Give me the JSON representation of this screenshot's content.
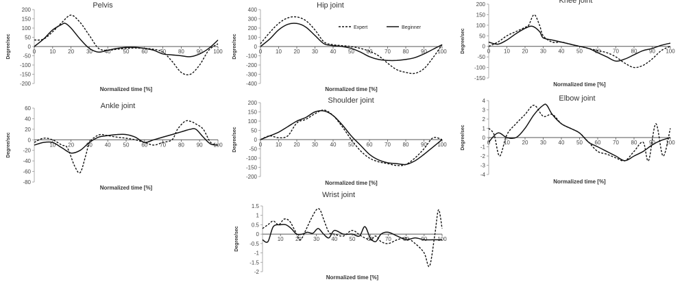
{
  "chart_data": [
    {
      "type": "line",
      "title": "Pelvis",
      "xlabel": "Normalized time [%]",
      "ylabel": "Degree/sec",
      "xlim": [
        0,
        100
      ],
      "ylim": [
        -200,
        200
      ],
      "xticks": [
        "0",
        "10",
        "20",
        "30",
        "40",
        "50",
        "60",
        "70",
        "80",
        "90",
        "100"
      ],
      "yticks": [
        "200",
        "150",
        "100",
        "50",
        "0",
        "-50",
        "-100",
        "-150",
        "-200"
      ],
      "series": [
        {
          "name": "Expert",
          "style": "dashed",
          "x": [
            0,
            5,
            10,
            15,
            20,
            25,
            30,
            35,
            40,
            45,
            50,
            55,
            60,
            65,
            70,
            75,
            80,
            85,
            90,
            95,
            100
          ],
          "y": [
            35,
            40,
            80,
            130,
            170,
            130,
            60,
            -10,
            -20,
            -15,
            -10,
            -8,
            -10,
            -15,
            -30,
            -80,
            -140,
            -150,
            -100,
            -20,
            15
          ]
        },
        {
          "name": "Beginner",
          "style": "solid",
          "x": [
            0,
            5,
            10,
            15,
            17,
            20,
            25,
            30,
            35,
            40,
            45,
            50,
            55,
            60,
            65,
            70,
            75,
            80,
            85,
            90,
            95,
            100
          ],
          "y": [
            0,
            40,
            90,
            120,
            125,
            100,
            40,
            -10,
            -30,
            -20,
            -10,
            -5,
            -5,
            -10,
            -20,
            -40,
            -45,
            -50,
            -55,
            -40,
            -10,
            35
          ]
        }
      ]
    },
    {
      "type": "line",
      "title": "Hip joint",
      "xlabel": "Normalized time [%]",
      "ylabel": "Degree/sec",
      "xlim": [
        0,
        100
      ],
      "ylim": [
        -400,
        400
      ],
      "xticks": [
        "0",
        "10",
        "20",
        "30",
        "40",
        "50",
        "60",
        "70",
        "80",
        "90",
        "100"
      ],
      "yticks": [
        "400",
        "300",
        "200",
        "100",
        "0",
        "-100",
        "-200",
        "-300",
        "-400"
      ],
      "legend": {
        "position": "top-right",
        "entries": [
          "Expert",
          "Beginner"
        ]
      },
      "series": [
        {
          "name": "Expert",
          "style": "dashed",
          "x": [
            0,
            5,
            10,
            15,
            20,
            25,
            30,
            35,
            40,
            45,
            50,
            55,
            60,
            65,
            70,
            75,
            80,
            85,
            90,
            95,
            100
          ],
          "y": [
            30,
            150,
            250,
            310,
            320,
            280,
            180,
            50,
            20,
            10,
            0,
            -20,
            -50,
            -100,
            -180,
            -250,
            -280,
            -290,
            -240,
            -120,
            20
          ]
        },
        {
          "name": "Beginner",
          "style": "solid",
          "x": [
            0,
            5,
            10,
            15,
            20,
            25,
            30,
            35,
            40,
            45,
            50,
            55,
            60,
            65,
            70,
            75,
            80,
            85,
            90,
            95,
            100
          ],
          "y": [
            0,
            80,
            180,
            240,
            250,
            210,
            120,
            30,
            10,
            0,
            -20,
            -60,
            -110,
            -140,
            -150,
            -150,
            -140,
            -120,
            -80,
            -30,
            20
          ]
        }
      ]
    },
    {
      "type": "line",
      "title": "Knee joint",
      "xlabel": "Normalized time [%]",
      "ylabel": "Degree/sec",
      "xlim": [
        0,
        100
      ],
      "ylim": [
        -150,
        200
      ],
      "xticks": [
        "0",
        "10",
        "20",
        "30",
        "40",
        "50",
        "60",
        "70",
        "80",
        "90",
        "100"
      ],
      "yticks": [
        "200",
        "150",
        "100",
        "50",
        "0",
        "-50",
        "-100",
        "-150"
      ],
      "series": [
        {
          "name": "Expert",
          "style": "dashed",
          "x": [
            0,
            5,
            10,
            15,
            20,
            22,
            25,
            28,
            30,
            35,
            40,
            45,
            50,
            55,
            60,
            65,
            70,
            75,
            80,
            85,
            90,
            95,
            100
          ],
          "y": [
            0,
            20,
            50,
            70,
            90,
            100,
            150,
            100,
            50,
            20,
            20,
            10,
            0,
            -10,
            -20,
            -30,
            -50,
            -80,
            -100,
            -90,
            -60,
            -20,
            0
          ]
        },
        {
          "name": "Beginner",
          "style": "solid",
          "x": [
            0,
            5,
            10,
            15,
            20,
            24,
            28,
            30,
            35,
            40,
            45,
            50,
            55,
            60,
            65,
            70,
            75,
            80,
            85,
            90,
            95,
            100
          ],
          "y": [
            20,
            10,
            30,
            60,
            85,
            95,
            70,
            40,
            30,
            20,
            10,
            0,
            -10,
            -30,
            -50,
            -70,
            -60,
            -40,
            -20,
            -10,
            5,
            15
          ]
        }
      ]
    },
    {
      "type": "line",
      "title": "Ankle joint",
      "xlabel": "Normalized time [%]",
      "ylabel": "Degree/sec",
      "xlim": [
        0,
        100
      ],
      "ylim": [
        -80,
        60
      ],
      "xticks": [
        "10",
        "20",
        "30",
        "40",
        "50",
        "60",
        "70",
        "80",
        "90",
        "100"
      ],
      "yticks": [
        "60",
        "40",
        "20",
        "0",
        "-20",
        "-40",
        "-60",
        "-80"
      ],
      "series": [
        {
          "name": "Expert",
          "style": "dashed",
          "x": [
            0,
            5,
            10,
            15,
            18,
            22,
            25,
            28,
            30,
            33,
            36,
            40,
            45,
            50,
            55,
            60,
            65,
            70,
            75,
            78,
            82,
            85,
            88,
            92,
            96,
            100
          ],
          "y": [
            -5,
            3,
            0,
            -10,
            -15,
            -50,
            -62,
            -30,
            -5,
            5,
            10,
            8,
            5,
            3,
            0,
            -5,
            -10,
            -5,
            0,
            20,
            35,
            35,
            30,
            20,
            -5,
            -10
          ]
        },
        {
          "name": "Beginner",
          "style": "solid",
          "x": [
            0,
            5,
            10,
            15,
            20,
            25,
            30,
            35,
            40,
            45,
            50,
            55,
            60,
            65,
            70,
            75,
            80,
            85,
            88,
            92,
            96,
            100
          ],
          "y": [
            -10,
            -5,
            -5,
            -15,
            -25,
            -20,
            -5,
            5,
            8,
            10,
            10,
            5,
            -5,
            0,
            5,
            10,
            15,
            20,
            20,
            5,
            -8,
            -10
          ]
        }
      ]
    },
    {
      "type": "line",
      "title": "Shoulder joint",
      "xlabel": "Normalized time [%]",
      "ylabel": "Degree/sec",
      "xlim": [
        0,
        100
      ],
      "ylim": [
        -200,
        200
      ],
      "xticks": [
        "0",
        "10",
        "20",
        "30",
        "40",
        "50",
        "60",
        "70",
        "80",
        "90",
        "100"
      ],
      "yticks": [
        "200",
        "150",
        "100",
        "50",
        "0",
        "-50",
        "-100",
        "-150",
        "-200"
      ],
      "series": [
        {
          "name": "Expert",
          "style": "dashed",
          "x": [
            0,
            5,
            10,
            15,
            20,
            25,
            30,
            35,
            40,
            45,
            50,
            55,
            60,
            65,
            70,
            75,
            80,
            85,
            90,
            95,
            100
          ],
          "y": [
            0,
            20,
            10,
            20,
            90,
            110,
            140,
            160,
            130,
            70,
            0,
            -60,
            -100,
            -120,
            -130,
            -140,
            -135,
            -100,
            -50,
            10,
            0
          ]
        },
        {
          "name": "Beginner",
          "style": "solid",
          "x": [
            0,
            5,
            10,
            15,
            20,
            25,
            30,
            35,
            40,
            45,
            50,
            55,
            60,
            65,
            70,
            75,
            80,
            85,
            90,
            95,
            100
          ],
          "y": [
            0,
            20,
            40,
            70,
            100,
            120,
            150,
            155,
            130,
            80,
            20,
            -30,
            -80,
            -110,
            -125,
            -130,
            -135,
            -115,
            -80,
            -40,
            0
          ]
        }
      ]
    },
    {
      "type": "line",
      "title": "Elbow joint",
      "xlabel": "Normalized time [%]",
      "ylabel": "Degree/sec",
      "xlim": [
        0,
        100
      ],
      "ylim": [
        -4,
        4
      ],
      "xticks": [
        "0",
        "10",
        "20",
        "30",
        "40",
        "50",
        "60",
        "70",
        "80",
        "90",
        "100"
      ],
      "yticks": [
        "4",
        "3",
        "2",
        "1",
        "0",
        "-1",
        "-2",
        "-3",
        "-4"
      ],
      "series": [
        {
          "name": "Expert",
          "style": "dashed",
          "x": [
            0,
            3,
            6,
            10,
            15,
            20,
            25,
            30,
            35,
            40,
            45,
            50,
            55,
            60,
            65,
            70,
            75,
            80,
            85,
            88,
            92,
            96,
            100
          ],
          "y": [
            1,
            0.3,
            -2,
            0.3,
            1.5,
            2.5,
            3.5,
            2.3,
            2.5,
            1.5,
            1,
            0.5,
            -0.5,
            -1.5,
            -1.8,
            -2.2,
            -2.5,
            -1.5,
            -0.5,
            -2.5,
            1.5,
            -2,
            1
          ]
        },
        {
          "name": "Beginner",
          "style": "solid",
          "x": [
            0,
            5,
            10,
            15,
            20,
            25,
            30,
            32,
            35,
            40,
            45,
            50,
            55,
            60,
            65,
            70,
            75,
            80,
            85,
            90,
            95,
            100
          ],
          "y": [
            -0.5,
            0.5,
            0,
            0,
            1,
            2.5,
            3.5,
            3.5,
            2.5,
            1.5,
            1,
            0.5,
            -0.5,
            -1,
            -1.5,
            -2,
            -2.5,
            -2,
            -1.5,
            -0.8,
            -0.3,
            0
          ]
        }
      ]
    },
    {
      "type": "line",
      "title": "Wrist joint",
      "xlabel": "Normalized time [%]",
      "ylabel": "Degree/sec",
      "xlim": [
        0,
        100
      ],
      "ylim": [
        -2,
        1.5
      ],
      "xticks": [
        "10",
        "20",
        "30",
        "40",
        "50",
        "60",
        "70",
        "80",
        "90",
        "100"
      ],
      "yticks": [
        "1.5",
        "1",
        "0.5",
        "0",
        "-0.5",
        "-1",
        "-1.5",
        "-2"
      ],
      "series": [
        {
          "name": "Expert",
          "style": "dashed",
          "x": [
            0,
            3,
            6,
            9,
            12,
            15,
            18,
            21,
            24,
            27,
            30,
            32,
            34,
            37,
            40,
            45,
            50,
            55,
            60,
            63,
            66,
            70,
            75,
            80,
            85,
            90,
            93,
            96,
            98,
            100
          ],
          "y": [
            0.3,
            0.5,
            0.7,
            0.5,
            0.8,
            0.7,
            0.2,
            -0.3,
            0.2,
            0.8,
            1.3,
            1.3,
            0.8,
            0.1,
            0,
            -0.1,
            0.2,
            -0.1,
            -0.3,
            -0.1,
            -0.4,
            -0.5,
            -0.3,
            -0.2,
            -0.5,
            -1.0,
            -1.7,
            0,
            1.3,
            0.3
          ]
        },
        {
          "name": "Beginner",
          "style": "solid",
          "x": [
            0,
            3,
            6,
            10,
            13,
            16,
            19,
            22,
            25,
            28,
            31,
            34,
            37,
            40,
            45,
            50,
            54,
            57,
            60,
            63,
            66,
            70,
            75,
            80,
            85,
            90,
            95,
            100
          ],
          "y": [
            -0.3,
            -0.4,
            0.4,
            0.5,
            0.5,
            0.3,
            0,
            0,
            0.1,
            0.05,
            0.3,
            0,
            -0.2,
            0.2,
            0,
            0,
            -0.1,
            0.4,
            -0.2,
            -0.4,
            0,
            0.1,
            -0.1,
            -0.3,
            -0.2,
            -0.3,
            -0.3,
            -0.3
          ]
        }
      ]
    }
  ]
}
